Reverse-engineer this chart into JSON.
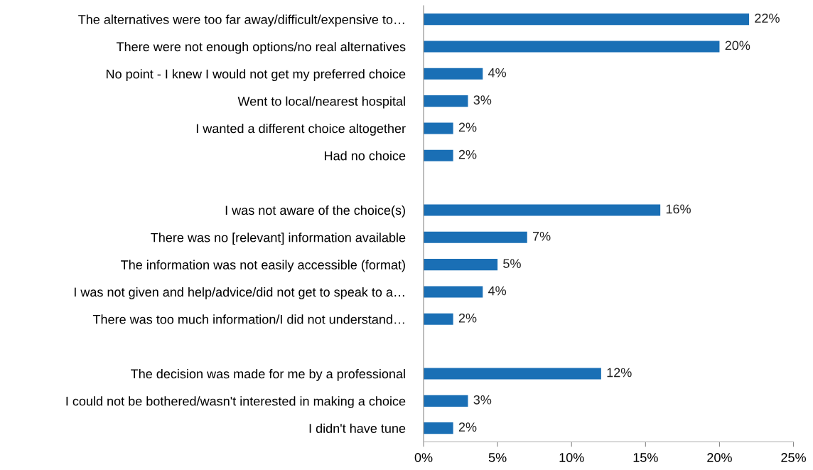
{
  "chart_data": {
    "type": "bar",
    "orientation": "horizontal",
    "categories": [
      "The alternatives were too far away/difficult/expensive to…",
      "There were not enough options/no real alternatives",
      "No point - I knew I would not get my preferred choice",
      "Went to local/nearest hospital",
      "I wanted a different choice altogether",
      "Had no choice",
      null,
      "I was not aware of the choice(s)",
      "There was no [relevant] information available",
      "The information was not easily accessible (format)",
      "I was not given and help/advice/did not get to speak to a…",
      "There was too much information/I did not understand…",
      null,
      "The decision was made for me by a professional",
      "I could not be bothered/wasn't interested in making a choice",
      "I didn't have tune"
    ],
    "values": [
      22,
      20,
      4,
      3,
      2,
      2,
      null,
      16,
      7,
      5,
      4,
      2,
      null,
      12,
      3,
      2
    ],
    "value_labels": [
      "22%",
      "20%",
      "4%",
      "3%",
      "2%",
      "2%",
      null,
      "16%",
      "7%",
      "5%",
      "4%",
      "2%",
      null,
      "12%",
      "3%",
      "2%"
    ],
    "color": "#1a6fb5",
    "xlim": [
      0,
      25
    ],
    "xticks": [
      {
        "value": 0,
        "label": "0%"
      },
      {
        "value": 5,
        "label": "5%"
      },
      {
        "value": 10,
        "label": "10%"
      },
      {
        "value": 15,
        "label": "15%"
      },
      {
        "value": 20,
        "label": "20%"
      },
      {
        "value": 25,
        "label": "25%"
      }
    ],
    "grid": false,
    "legend": false
  }
}
